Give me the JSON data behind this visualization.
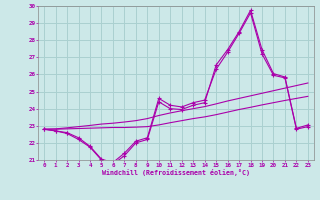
{
  "x": [
    0,
    1,
    2,
    3,
    4,
    5,
    6,
    7,
    8,
    9,
    10,
    11,
    12,
    13,
    14,
    15,
    16,
    17,
    18,
    19,
    20,
    21,
    22,
    23
  ],
  "line_jagged1": [
    22.8,
    22.7,
    22.6,
    22.3,
    21.8,
    21.05,
    20.85,
    21.4,
    22.1,
    22.3,
    24.6,
    24.2,
    24.1,
    24.35,
    24.5,
    26.3,
    27.3,
    28.4,
    29.6,
    27.2,
    25.95,
    25.8,
    22.8,
    22.95
  ],
  "line_jagged2": [
    22.8,
    22.7,
    22.55,
    22.2,
    21.75,
    21.0,
    20.75,
    21.25,
    22.0,
    22.2,
    24.4,
    24.0,
    23.95,
    24.2,
    24.35,
    26.55,
    27.45,
    28.5,
    29.75,
    27.45,
    26.05,
    25.85,
    22.85,
    23.05
  ],
  "line_trend1": [
    22.8,
    22.82,
    22.88,
    22.95,
    23.02,
    23.1,
    23.15,
    23.22,
    23.3,
    23.42,
    23.6,
    23.75,
    23.88,
    24.0,
    24.12,
    24.28,
    24.45,
    24.6,
    24.75,
    24.9,
    25.05,
    25.2,
    25.35,
    25.5
  ],
  "line_trend2": [
    22.8,
    22.8,
    22.82,
    22.84,
    22.86,
    22.88,
    22.9,
    22.9,
    22.92,
    22.95,
    23.05,
    23.18,
    23.3,
    23.42,
    23.52,
    23.65,
    23.8,
    23.95,
    24.08,
    24.22,
    24.35,
    24.48,
    24.6,
    24.72
  ],
  "color": "#aa00aa",
  "bg_color": "#cce8e8",
  "grid_color": "#aad0d0",
  "xlabel": "Windchill (Refroidissement éolien,°C)",
  "ylim": [
    21,
    30
  ],
  "yticks": [
    21,
    22,
    23,
    24,
    25,
    26,
    27,
    28,
    29,
    30
  ],
  "xticks": [
    0,
    1,
    2,
    3,
    4,
    5,
    6,
    7,
    8,
    9,
    10,
    11,
    12,
    13,
    14,
    15,
    16,
    17,
    18,
    19,
    20,
    21,
    22,
    23
  ]
}
